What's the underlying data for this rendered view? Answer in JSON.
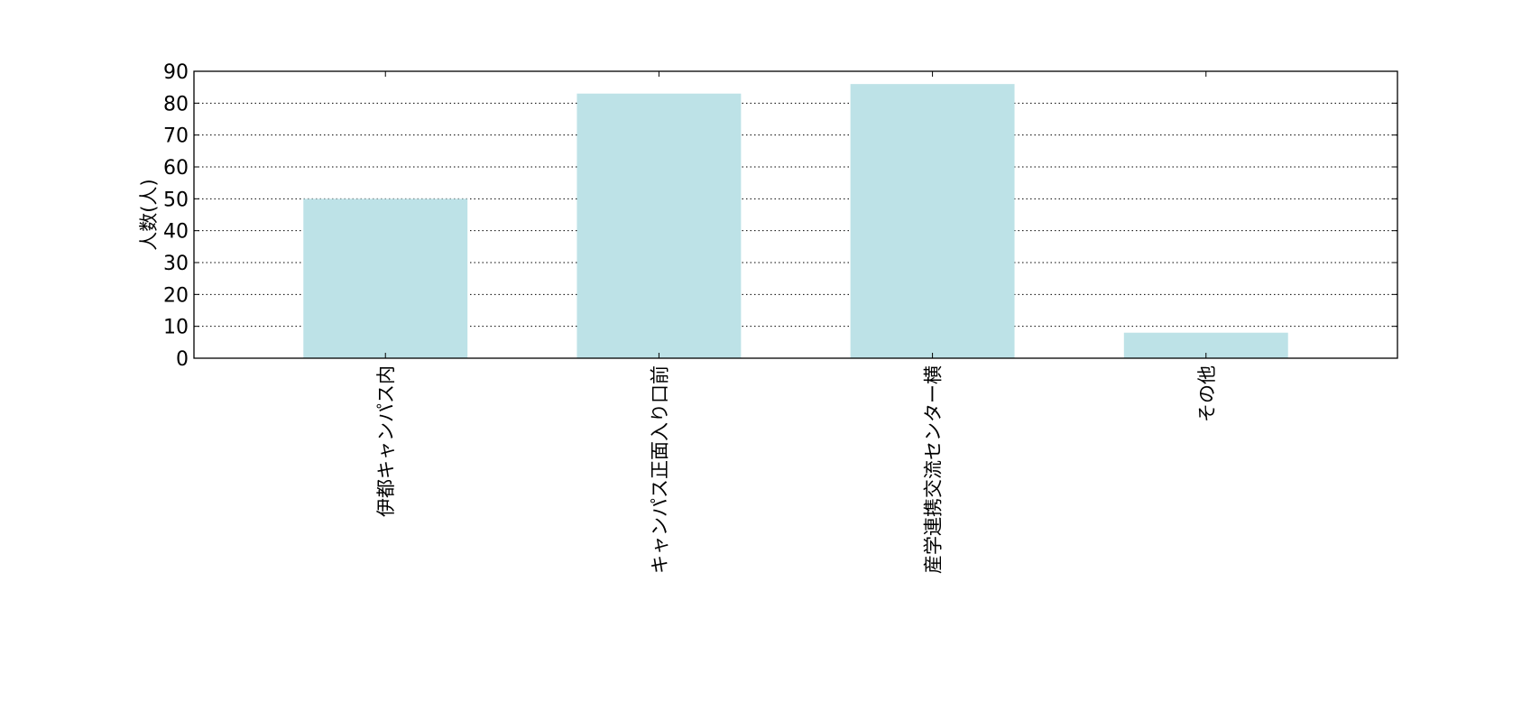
{
  "chart_data": {
    "type": "bar",
    "categories": [
      "伊都キャンパス内",
      "キャンパス正面入り口前",
      "産学連携交流センター横",
      "その他"
    ],
    "values": [
      50,
      83,
      86,
      8
    ],
    "title": "",
    "xlabel": "",
    "ylabel": "人数(人)",
    "ylim": [
      0,
      90
    ],
    "yticks": [
      0,
      10,
      20,
      30,
      40,
      50,
      60,
      70,
      80,
      90
    ],
    "grid": true,
    "grid_style": "dotted",
    "bar_color": "#bde2e7"
  }
}
